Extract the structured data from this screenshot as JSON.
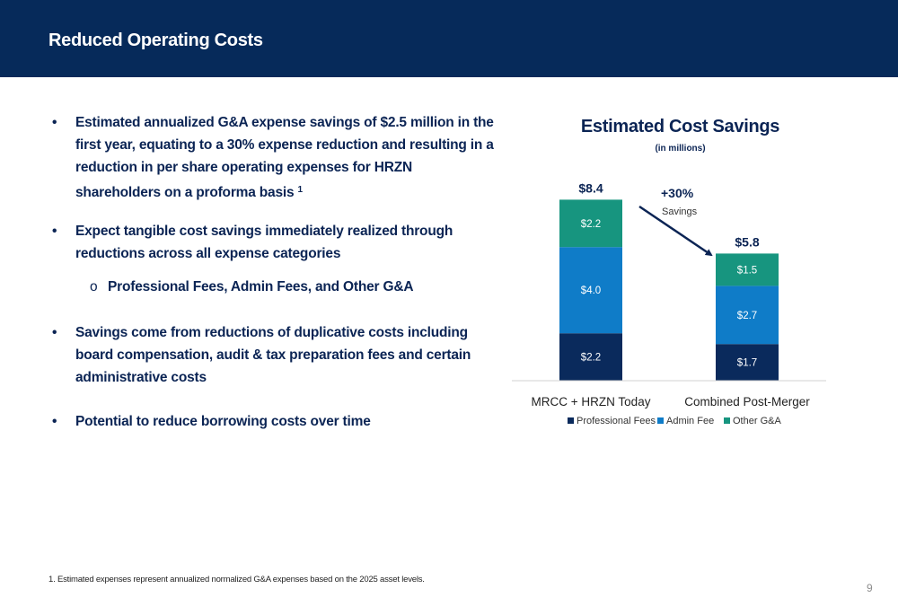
{
  "header": {
    "title": "Reduced Operating Costs"
  },
  "bullets": {
    "b1_text": "Estimated annualized G&A expense savings of $2.5 million in the first year, equating to a 30% expense reduction and resulting in a reduction in per share operating expenses for HRZN shareholders on a proforma basis",
    "b1_sup": "1",
    "b2_text": "Expect tangible cost savings immediately realized through reductions across all expense categories",
    "b2_sub": "Professional Fees, Admin Fees, and Other G&A",
    "b3_text": "Savings come from reductions of duplicative costs including board compensation, audit & tax preparation fees and certain administrative costs",
    "b4_text": "Potential to reduce borrowing costs over time",
    "bullet_glyph": "•",
    "sub_glyph": "o"
  },
  "footnote": "1. Estimated expenses represent annualized normalized G&A expenses based on the 2025 asset levels.",
  "page_number": "9",
  "chart_data": {
    "type": "bar",
    "stacked": true,
    "title": "Estimated Cost Savings",
    "subtitle": "(in millions)",
    "categories": [
      "MRCC + HRZN Today",
      "Combined Post-Merger"
    ],
    "series": [
      {
        "name": "Professional Fees",
        "color": "#0a2a5c",
        "values": [
          2.2,
          1.7
        ],
        "labels": [
          "$2.2",
          "$1.7"
        ]
      },
      {
        "name": "Admin Fee",
        "color": "#0f7cc8",
        "values": [
          4.0,
          2.7
        ],
        "labels": [
          "$4.0",
          "$2.7"
        ]
      },
      {
        "name": "Other G&A",
        "color": "#17957f",
        "values": [
          2.2,
          1.5
        ],
        "labels": [
          "$2.2",
          "$1.5"
        ]
      }
    ],
    "totals": [
      "$8.4",
      "$5.8"
    ],
    "annotation": {
      "value": "+30%",
      "text": "Savings"
    },
    "legend_position": "bottom",
    "grid": false
  }
}
